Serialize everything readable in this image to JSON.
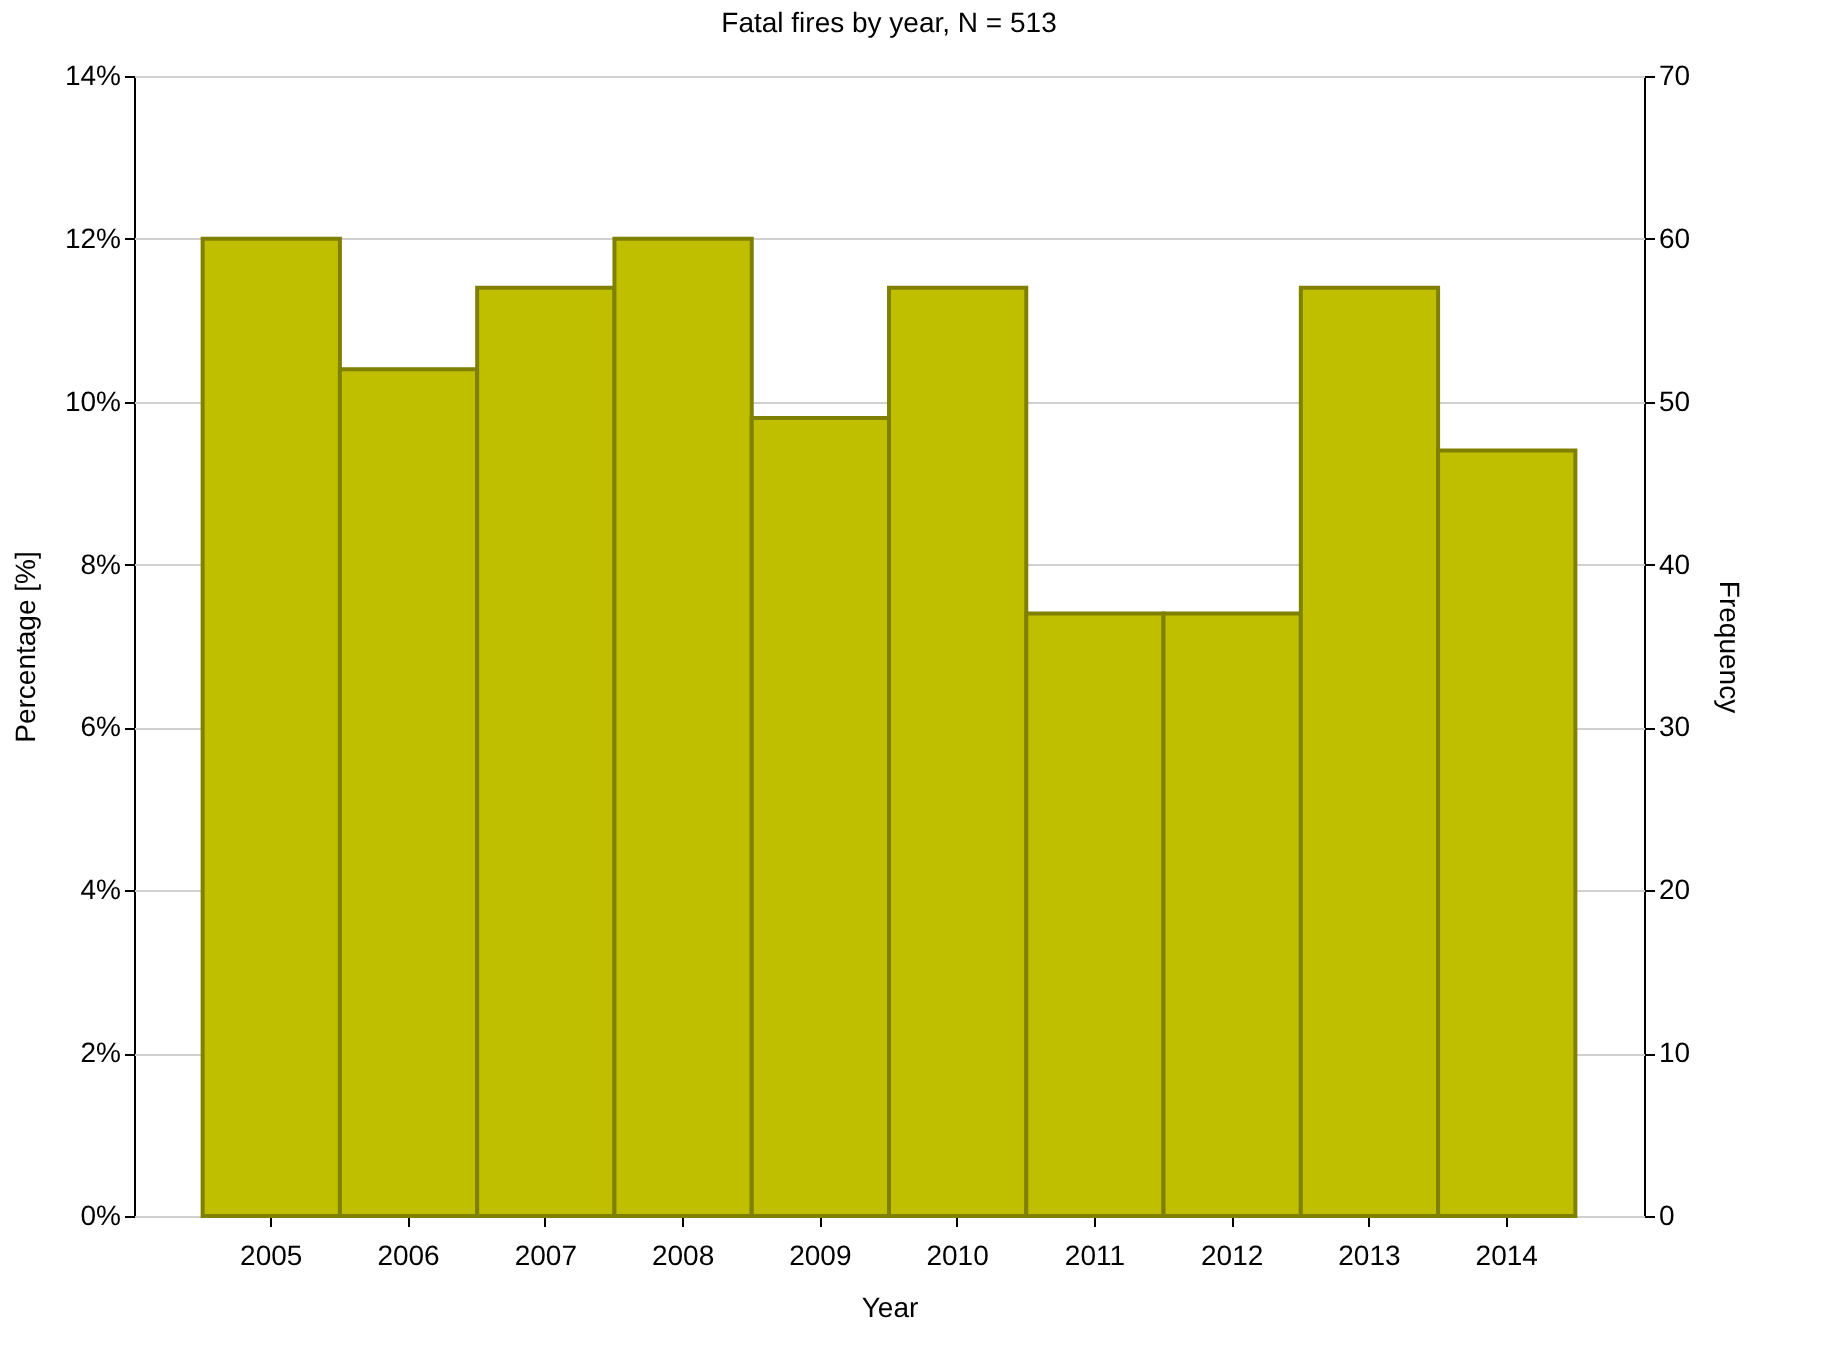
{
  "chart_data": {
    "type": "bar",
    "title": "Fatal fires by year, N = 513",
    "xlabel": "Year",
    "ylabel": "Percentage [%]",
    "y2label": "Frequency",
    "categories": [
      "2005",
      "2006",
      "2007",
      "2008",
      "2009",
      "2010",
      "2011",
      "2012",
      "2013",
      "2014"
    ],
    "series": [
      {
        "color": "#bfbf00",
        "axis": "y2",
        "values": [
          60,
          52,
          57,
          60,
          49,
          57,
          37,
          37,
          57,
          47
        ]
      }
    ],
    "ylim": [
      0,
      14
    ],
    "yticks": [
      {
        "value": 0,
        "label": "0%"
      },
      {
        "value": 2,
        "label": "2%"
      },
      {
        "value": 4,
        "label": "4%"
      },
      {
        "value": 6,
        "label": "6%"
      },
      {
        "value": 8,
        "label": "8%"
      },
      {
        "value": 10,
        "label": "10%"
      },
      {
        "value": 12,
        "label": "12%"
      },
      {
        "value": 14,
        "label": "14%"
      }
    ],
    "y2lim": [
      0,
      70
    ],
    "y2ticks": [
      0,
      10,
      20,
      30,
      40,
      50,
      60,
      70
    ],
    "grid": "y"
  }
}
